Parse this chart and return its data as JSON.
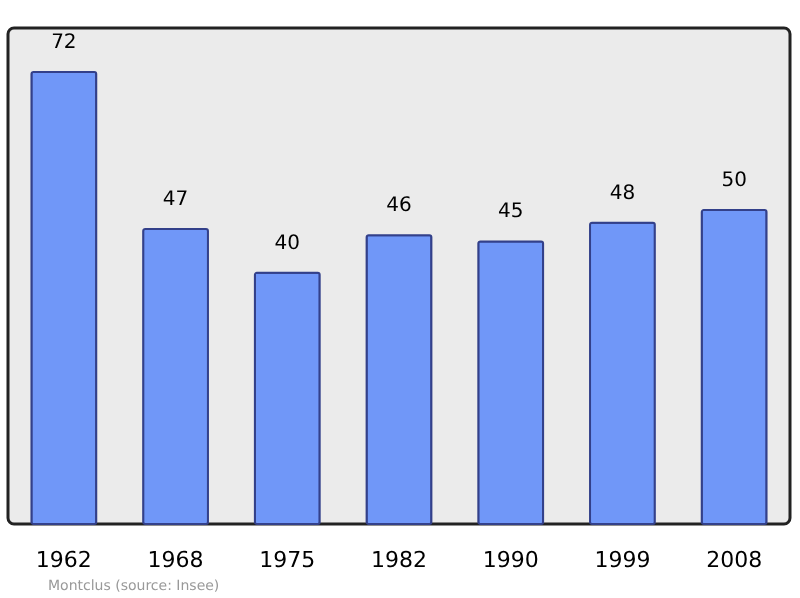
{
  "chart_data": {
    "type": "bar",
    "categories": [
      "1962",
      "1968",
      "1975",
      "1982",
      "1990",
      "1999",
      "2008"
    ],
    "values": [
      72,
      47,
      40,
      46,
      45,
      48,
      50
    ],
    "color": "#7097f8",
    "data_labels": true,
    "ylim": [
      0,
      79
    ],
    "tick_labels": "x",
    "grid": false,
    "annotations": [
      "Montclus    (source: Insee)"
    ]
  }
}
